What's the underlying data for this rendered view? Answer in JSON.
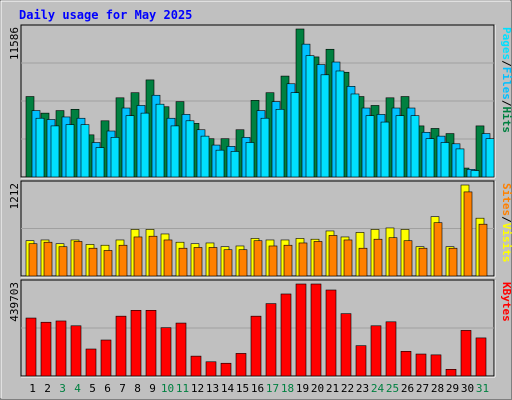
{
  "chart_data": [
    {
      "type": "bar",
      "title": "Daily usage for May 2025",
      "ymax_label": "11586",
      "ymax": 11586,
      "categories": [
        "1",
        "2",
        "3",
        "4",
        "5",
        "6",
        "7",
        "8",
        "9",
        "10",
        "11",
        "12",
        "13",
        "14",
        "15",
        "16",
        "17",
        "18",
        "19",
        "20",
        "21",
        "22",
        "23",
        "24",
        "25",
        "26",
        "27",
        "28",
        "29",
        "30",
        "31"
      ],
      "weekend_days": [
        "3",
        "4",
        "10",
        "11",
        "17",
        "18",
        "24",
        "25",
        "31"
      ],
      "legend": [
        "Hits",
        "/",
        "Files",
        "/",
        "Pages"
      ],
      "series": [
        {
          "name": "Hits",
          "color": "#008040",
          "values": [
            6300,
            5000,
            5200,
            5300,
            3300,
            4400,
            6200,
            6600,
            7600,
            5500,
            5900,
            4200,
            3000,
            3000,
            3700,
            6000,
            6600,
            7900,
            11586,
            9400,
            10000,
            8200,
            6300,
            5600,
            6200,
            6300,
            4000,
            3800,
            3400,
            700,
            4000
          ]
        },
        {
          "name": "Files",
          "color": "#00c0ff",
          "values": [
            5200,
            4500,
            4700,
            4600,
            2700,
            3600,
            5400,
            5600,
            6400,
            4600,
            4900,
            3700,
            2500,
            2400,
            3100,
            5200,
            5900,
            7300,
            10400,
            8800,
            9000,
            7100,
            5400,
            4900,
            5400,
            5400,
            3500,
            3200,
            2600,
            600,
            3400
          ]
        },
        {
          "name": "Pages",
          "color": "#00e0ff",
          "values": [
            4600,
            4000,
            4100,
            4100,
            2300,
            3100,
            4800,
            5000,
            5700,
            4000,
            4400,
            3200,
            2100,
            2000,
            2700,
            4600,
            5300,
            6600,
            9500,
            8000,
            8300,
            6500,
            4800,
            4300,
            4800,
            4800,
            3000,
            2700,
            2200,
            500,
            3000
          ]
        }
      ]
    },
    {
      "type": "bar",
      "ymax_label": "1212",
      "ymax": 1212,
      "categories": [
        "1",
        "2",
        "3",
        "4",
        "5",
        "6",
        "7",
        "8",
        "9",
        "10",
        "11",
        "12",
        "13",
        "14",
        "15",
        "16",
        "17",
        "18",
        "19",
        "20",
        "21",
        "22",
        "23",
        "24",
        "25",
        "26",
        "27",
        "28",
        "29",
        "30",
        "31"
      ],
      "legend": [
        "Visits",
        "/",
        "Sites"
      ],
      "series": [
        {
          "name": "Visits",
          "color": "#ffff00",
          "values": [
            470,
            480,
            430,
            480,
            420,
            410,
            480,
            620,
            620,
            560,
            450,
            430,
            440,
            390,
            400,
            500,
            480,
            480,
            500,
            490,
            600,
            520,
            580,
            620,
            640,
            620,
            390,
            790,
            390,
            1212,
            770
          ]
        },
        {
          "name": "Sites",
          "color": "#ff8000",
          "values": [
            430,
            450,
            390,
            460,
            370,
            340,
            410,
            520,
            530,
            480,
            370,
            380,
            380,
            350,
            350,
            470,
            400,
            410,
            440,
            460,
            540,
            480,
            370,
            490,
            510,
            470,
            370,
            710,
            370,
            1120,
            690
          ]
        }
      ]
    },
    {
      "type": "bar",
      "ymax_label": "439703",
      "ymax": 439703,
      "categories": [
        "1",
        "2",
        "3",
        "4",
        "5",
        "6",
        "7",
        "8",
        "9",
        "10",
        "11",
        "12",
        "13",
        "14",
        "15",
        "16",
        "17",
        "18",
        "19",
        "20",
        "21",
        "22",
        "23",
        "24",
        "25",
        "26",
        "27",
        "28",
        "29",
        "30",
        "31"
      ],
      "legend": [
        "KBytes"
      ],
      "series": [
        {
          "name": "KBytes",
          "color": "#ff0000",
          "values": [
            277000,
            257000,
            263000,
            240000,
            129000,
            172000,
            286000,
            314000,
            314000,
            231000,
            253000,
            95000,
            68000,
            61000,
            108000,
            286000,
            346000,
            392000,
            439703,
            439703,
            411000,
            298000,
            145000,
            240000,
            259000,
            118000,
            105000,
            101000,
            32000,
            218000,
            182000
          ]
        }
      ]
    }
  ],
  "colors": {
    "background": "#c0c0c0",
    "plot_background": "#c0c0c0",
    "title": "#0000ff",
    "weekday_label": "#000000",
    "weekend_label": "#008040"
  }
}
